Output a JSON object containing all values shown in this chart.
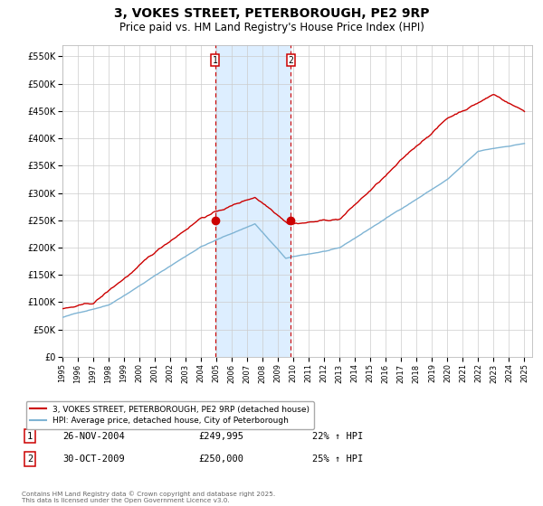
{
  "title": "3, VOKES STREET, PETERBOROUGH, PE2 9RP",
  "subtitle": "Price paid vs. HM Land Registry's House Price Index (HPI)",
  "title_fontsize": 10,
  "subtitle_fontsize": 8.5,
  "bg_color": "#ffffff",
  "plot_bg_color": "#ffffff",
  "grid_color": "#cccccc",
  "red_color": "#cc0000",
  "blue_color": "#7fb4d4",
  "shade_color": "#ddeeff",
  "marker_color": "#cc0000",
  "sale1_date": "26-NOV-2004",
  "sale1_price": 249995,
  "sale1_hpi_pct": "22%",
  "sale2_date": "30-OCT-2009",
  "sale2_price": 250000,
  "sale2_hpi_pct": "25%",
  "ylabel_vals": [
    0,
    50000,
    100000,
    150000,
    200000,
    250000,
    300000,
    350000,
    400000,
    450000,
    500000,
    550000
  ],
  "ylabel_labels": [
    "£0",
    "£50K",
    "£100K",
    "£150K",
    "£200K",
    "£250K",
    "£300K",
    "£350K",
    "£400K",
    "£450K",
    "£500K",
    "£550K"
  ],
  "legend_red": "3, VOKES STREET, PETERBOROUGH, PE2 9RP (detached house)",
  "legend_blue": "HPI: Average price, detached house, City of Peterborough",
  "footnote": "Contains HM Land Registry data © Crown copyright and database right 2025.\nThis data is licensed under the Open Government Licence v3.0.",
  "sale1_x": 2004.9,
  "sale2_x": 2009.83
}
